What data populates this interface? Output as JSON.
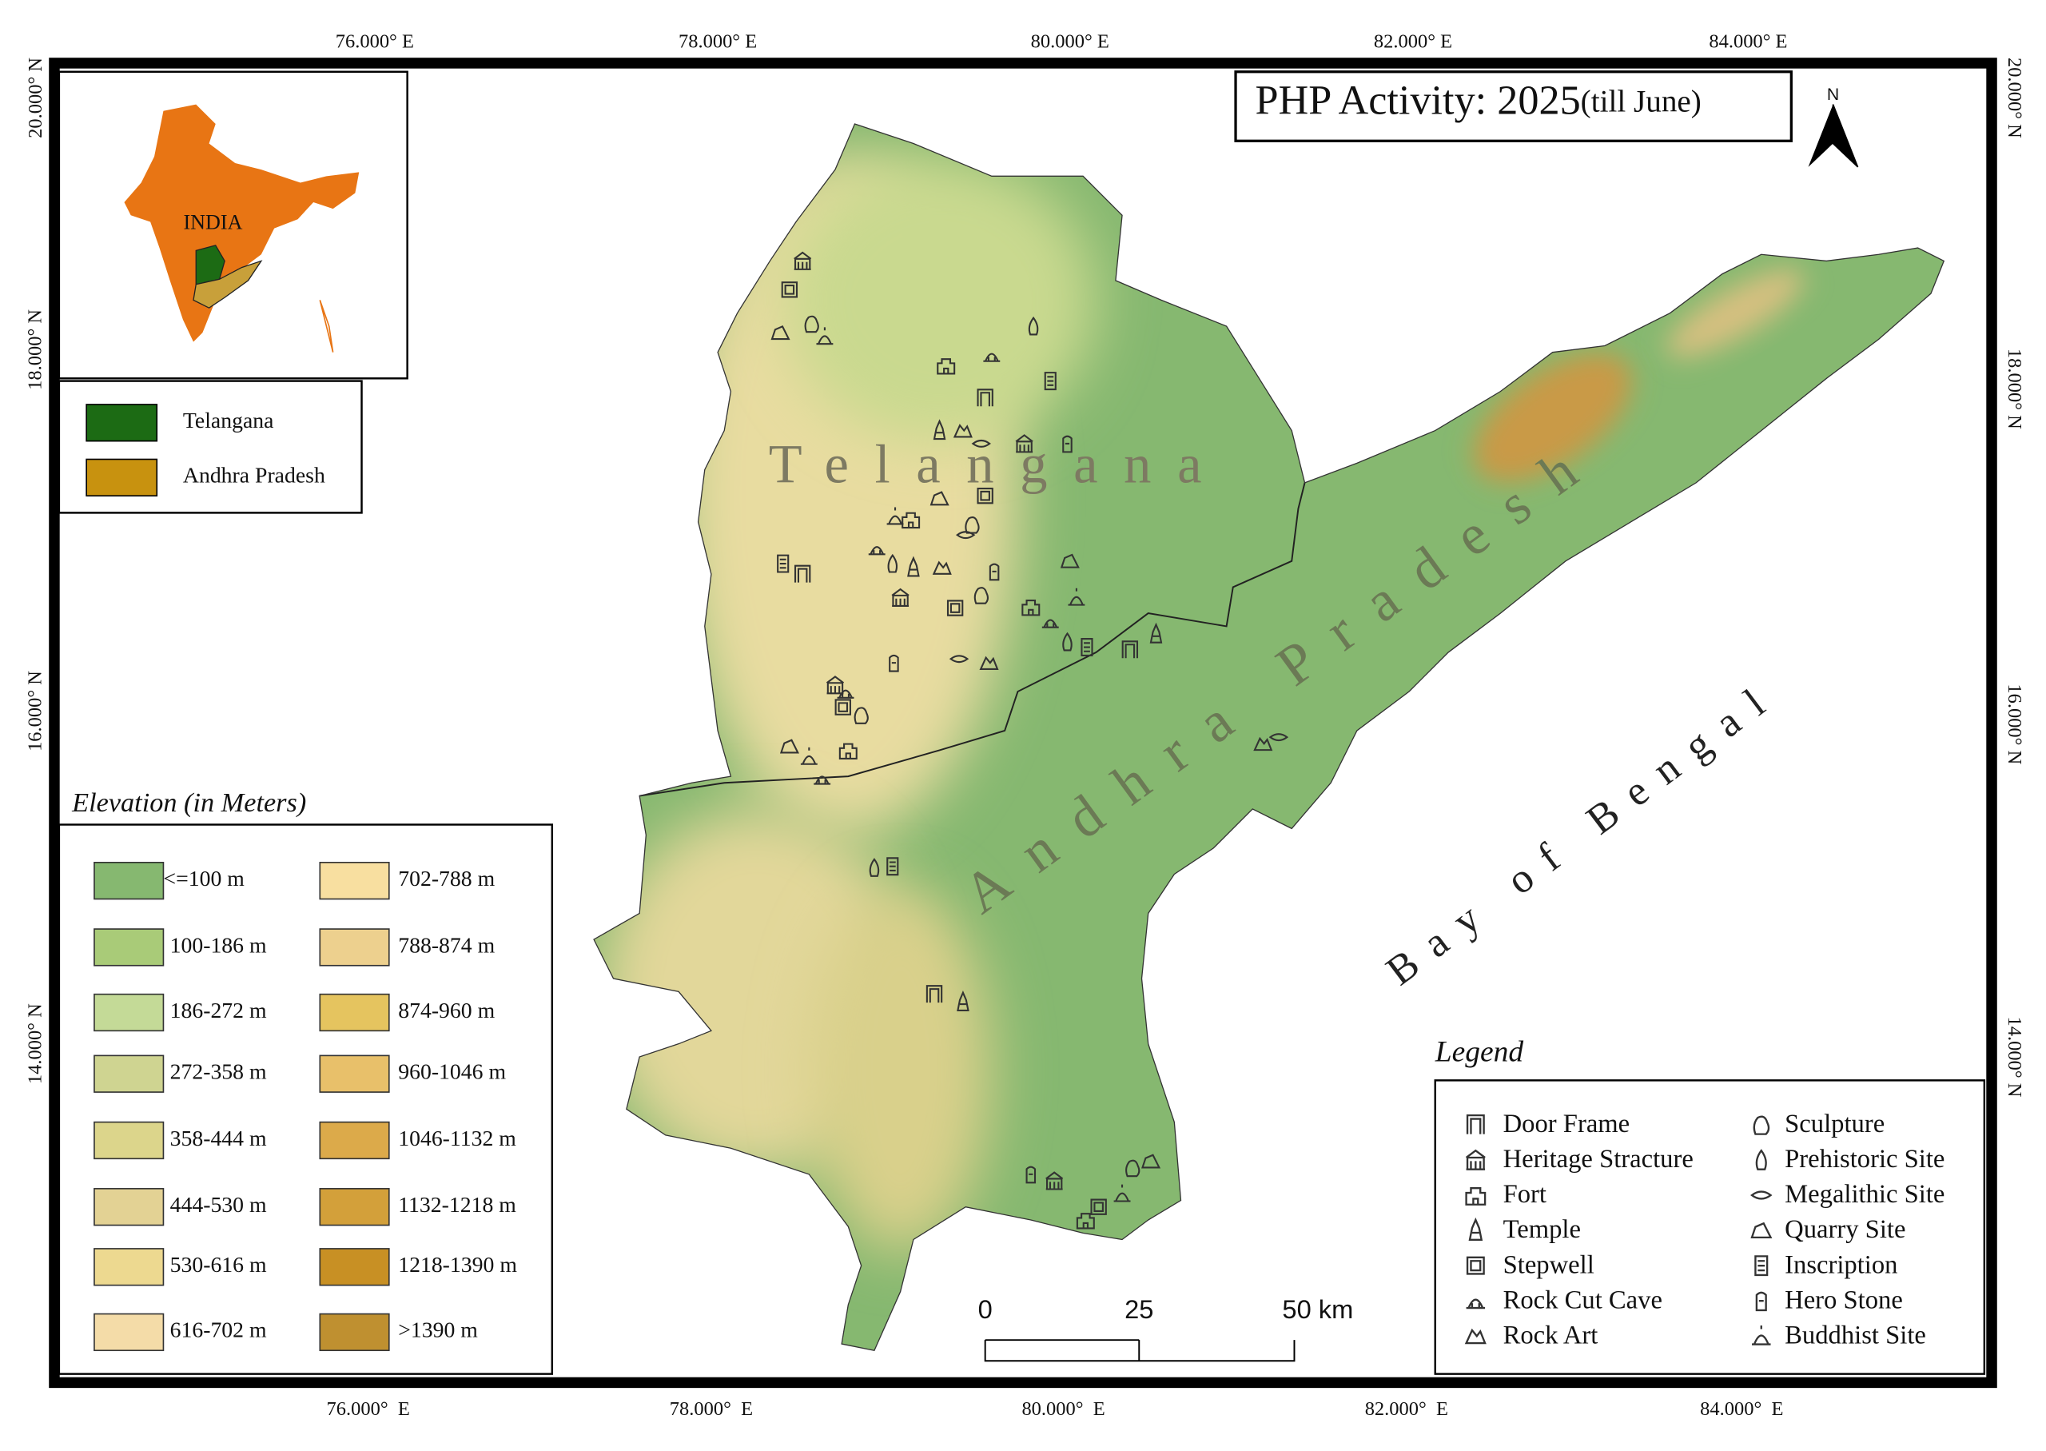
{
  "map": {
    "title": "PHP Activity: 2025",
    "title_note": "(till June)",
    "north_arrow": "N",
    "longitude_labels_top": [
      "76.000° E",
      "78.000° E",
      "80.000° E",
      "82.000° E",
      "84.000° E"
    ],
    "longitude_labels_bottom": [
      "76.000°  E",
      "78.000°  E",
      "80.000°  E",
      "82.000°  E",
      "84.000°  E"
    ],
    "latitude_labels_left": [
      "20.000° N",
      "18.000° N",
      "16.000° N",
      "14.000° N"
    ],
    "latitude_labels_right": [
      "20.000° N",
      "18.000° N",
      "16.000° N",
      "14.000° N"
    ],
    "region_labels": [
      "Telangana",
      "Andhra Pradesh",
      "Bay of Bengal"
    ],
    "inset": {
      "label": "INDIA"
    },
    "states_legend": [
      {
        "name": "Telangana",
        "color": "#1c6b14"
      },
      {
        "name": "Andhra Pradesh",
        "color": "#c8920f"
      }
    ],
    "elevation_legend": {
      "title": "Elevation (in Meters)",
      "classes": [
        {
          "label": "<=100 m",
          "color": "#86b870"
        },
        {
          "label": "100-186 m",
          "color": "#a9cb78"
        },
        {
          "label": "186-272 m",
          "color": "#c4da97"
        },
        {
          "label": "272-358 m",
          "color": "#cfd491"
        },
        {
          "label": "358-444 m",
          "color": "#dcd58b"
        },
        {
          "label": "444-530 m",
          "color": "#e3d294"
        },
        {
          "label": "530-616 m",
          "color": "#edd990"
        },
        {
          "label": "616-702 m",
          "color": "#f4dca8"
        },
        {
          "label": "702-788 m",
          "color": "#f8dfa0"
        },
        {
          "label": "788-874 m",
          "color": "#edd08e"
        },
        {
          "label": "874-960 m",
          "color": "#e5c45f"
        },
        {
          "label": "960-1046 m",
          "color": "#e8c06a"
        },
        {
          "label": "1046-1132 m",
          "color": "#dcaa4a"
        },
        {
          "label": "1132-1218 m",
          "color": "#d3a03a"
        },
        {
          "label": "1218-1390 m",
          "color": "#c89024"
        },
        {
          "label": ">1390 m",
          "color": "#bf9030"
        }
      ]
    },
    "site_legend": {
      "title": "Legend",
      "items": [
        "Door Frame",
        "Heritage Stracture",
        "Fort",
        "Temple",
        "Stepwell",
        "Rock Cut Cave",
        "Rock Art",
        "Sculpture",
        "Prehistoric Site",
        "Megalithic Site",
        "Quarry Site",
        "Inscription",
        "Hero Stone",
        "Buddhist Site"
      ]
    },
    "scale_bar": {
      "labels": [
        "0",
        "25",
        "50 km"
      ]
    }
  }
}
